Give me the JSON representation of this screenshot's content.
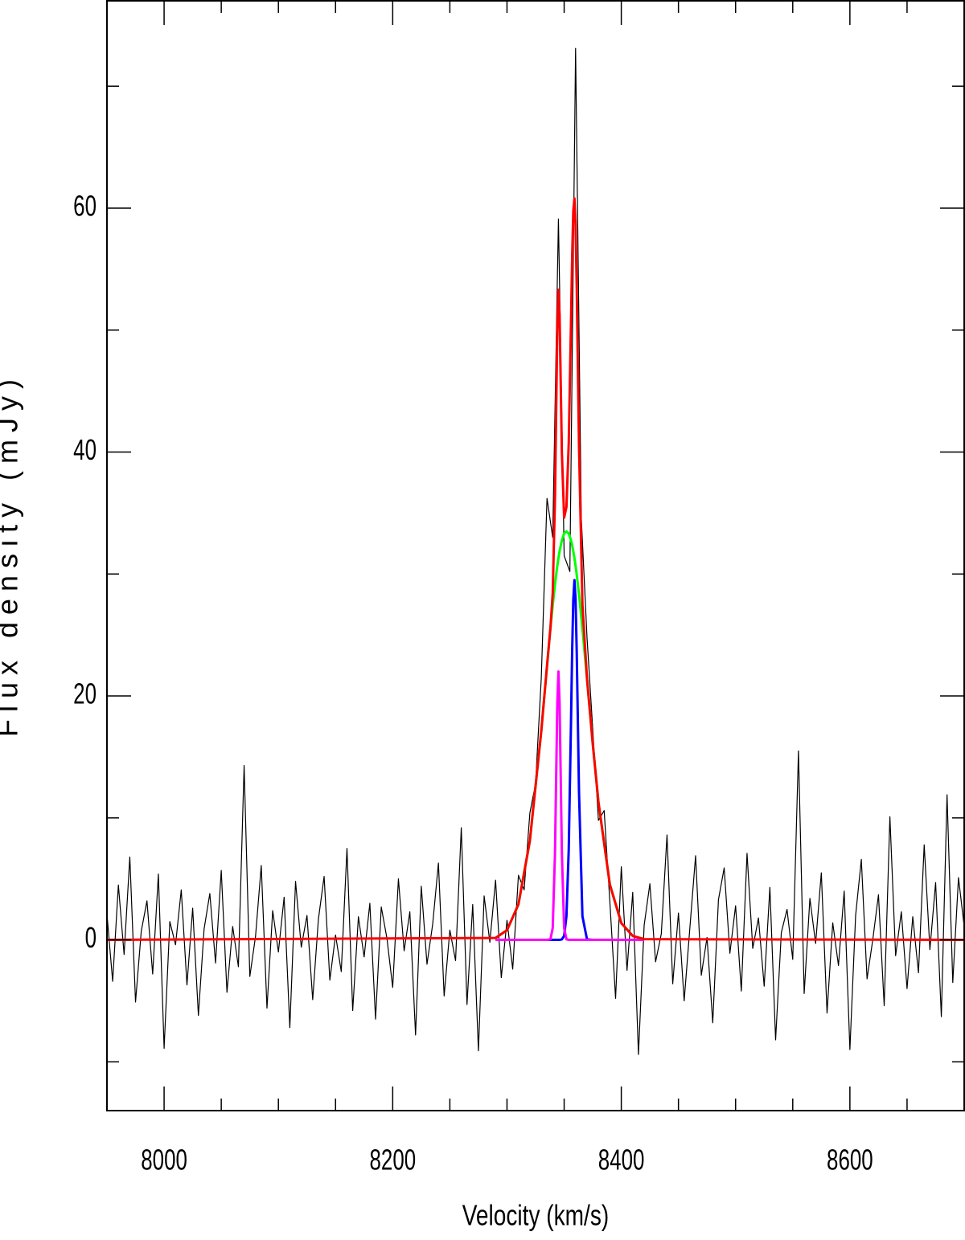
{
  "chart_data": {
    "type": "line",
    "xlabel": "Velocity (km/s)",
    "ylabel": "Flux density (mJy)",
    "xlim": [
      7950,
      8700
    ],
    "ylim": [
      -14,
      77
    ],
    "xticks": [
      8000,
      8200,
      8400,
      8600
    ],
    "yticks": [
      0,
      20,
      40,
      60
    ],
    "xminor_ticks": [
      8050,
      8100,
      8150,
      8250,
      8300,
      8350,
      8450,
      8500,
      8550,
      8650
    ],
    "yminor_ticks": [
      -10,
      10,
      30,
      50,
      70
    ],
    "grid": false,
    "x": [
      7950,
      7955,
      7960,
      7965,
      7970,
      7975,
      7980,
      7985,
      7990,
      7995,
      8000,
      8005,
      8010,
      8015,
      8020,
      8025,
      8030,
      8035,
      8040,
      8045,
      8050,
      8055,
      8060,
      8065,
      8070,
      8075,
      8080,
      8085,
      8090,
      8095,
      8100,
      8105,
      8110,
      8115,
      8120,
      8125,
      8130,
      8135,
      8140,
      8145,
      8150,
      8155,
      8160,
      8165,
      8170,
      8175,
      8180,
      8185,
      8190,
      8195,
      8200,
      8205,
      8210,
      8215,
      8220,
      8225,
      8230,
      8235,
      8240,
      8245,
      8250,
      8255,
      8260,
      8265,
      8270,
      8275,
      8280,
      8285,
      8290,
      8295,
      8300,
      8305,
      8310,
      8315,
      8320,
      8325,
      8330,
      8335,
      8340,
      8345,
      8350,
      8355,
      8360,
      8365,
      8370,
      8375,
      8380,
      8385,
      8390,
      8395,
      8400,
      8405,
      8410,
      8415,
      8420,
      8425,
      8430,
      8435,
      8440,
      8445,
      8450,
      8455,
      8460,
      8465,
      8470,
      8475,
      8480,
      8485,
      8490,
      8495,
      8500,
      8505,
      8510,
      8515,
      8520,
      8525,
      8530,
      8535,
      8540,
      8545,
      8550,
      8555,
      8560,
      8565,
      8570,
      8575,
      8580,
      8585,
      8590,
      8595,
      8600,
      8605,
      8610,
      8615,
      8620,
      8625,
      8630,
      8635,
      8640,
      8645,
      8650,
      8655,
      8660,
      8665,
      8670,
      8675,
      8680,
      8685,
      8690,
      8695,
      8700
    ],
    "series": [
      {
        "color": "#000000",
        "values": [
          2.1,
          -3.4,
          4.5,
          -1.2,
          6.8,
          -5.1,
          0.7,
          3.2,
          -2.8,
          5.4,
          -8.9,
          1.5,
          -0.4,
          4.1,
          -3.7,
          2.6,
          -6.2,
          0.9,
          3.8,
          -1.9,
          5.7,
          -4.3,
          1.1,
          -2.2,
          14.3,
          -3.0,
          0.3,
          6.1,
          -5.6,
          2.4,
          -1.0,
          3.5,
          -7.2,
          4.8,
          -0.6,
          2.0,
          -4.9,
          1.7,
          5.2,
          -3.3,
          0.4,
          -2.6,
          7.5,
          -5.8,
          1.9,
          -1.4,
          3.0,
          -6.5,
          2.7,
          0.1,
          -3.9,
          5.0,
          -0.9,
          2.3,
          -7.8,
          4.4,
          -2.0,
          1.3,
          6.3,
          -4.6,
          0.8,
          -1.7,
          9.2,
          -5.3,
          2.9,
          -9.1,
          3.6,
          -0.2,
          4.9,
          -3.1,
          1.6,
          -2.4,
          5.3,
          4.1,
          10.4,
          12.8,
          21.5,
          36.2,
          33.0,
          59.1,
          31.5,
          30.2,
          73.1,
          34.6,
          24.8,
          17.3,
          9.8,
          10.6,
          3.1,
          -4.8,
          6.0,
          -2.5,
          3.9,
          -9.4,
          1.2,
          4.6,
          -1.8,
          0.5,
          8.6,
          -3.6,
          2.2,
          -5.0,
          1.0,
          6.9,
          -2.9,
          0.2,
          -6.8,
          3.3,
          5.9,
          -1.1,
          2.8,
          -4.2,
          7.1,
          -0.7,
          1.8,
          -3.8,
          4.3,
          -8.2,
          0.6,
          2.5,
          -1.6,
          15.5,
          -4.4,
          3.4,
          -0.3,
          5.5,
          -6.0,
          1.4,
          -2.1,
          4.0,
          -9.0,
          2.0,
          6.6,
          -3.2,
          0.0,
          3.7,
          -5.4,
          10.1,
          -1.3,
          2.3,
          -4.0,
          1.9,
          -2.7,
          7.8,
          -0.8,
          4.7,
          -6.3,
          11.9,
          -3.5,
          5.1,
          1.1
        ]
      },
      {
        "color": "#0000ff",
        "x": [
          8290,
          8300,
          8310,
          8320,
          8330,
          8335,
          8338,
          8340,
          8342,
          8344,
          8345,
          8346,
          8348,
          8350,
          8352,
          8354,
          8356,
          8357,
          8358,
          8359,
          8360,
          8361,
          8363,
          8366,
          8370,
          8375,
          8380,
          8390,
          8400,
          8410,
          8420
        ],
        "values": [
          0,
          0,
          0,
          0,
          0,
          0,
          0,
          0,
          0,
          0,
          0,
          0,
          0.04,
          0.33,
          1.94,
          7.36,
          17.89,
          23.62,
          27.91,
          29.5,
          27.91,
          23.62,
          12.13,
          1.94,
          0.04,
          0,
          0,
          0,
          0,
          0,
          0
        ]
      },
      {
        "color": "#ff00ff",
        "x": [
          8290,
          8300,
          8310,
          8320,
          8330,
          8335,
          8338,
          8340,
          8342,
          8344,
          8345,
          8346,
          8348,
          8350,
          8352,
          8354,
          8356,
          8357,
          8358,
          8359,
          8360,
          8361,
          8363,
          8366,
          8370,
          8375,
          8380,
          8390,
          8400,
          8410,
          8420
        ],
        "values": [
          0,
          0,
          0,
          0,
          0,
          0,
          0.05,
          0.97,
          7.14,
          19.41,
          22,
          19.41,
          7.14,
          0.97,
          0.05,
          0,
          0,
          0,
          0,
          0,
          0,
          0,
          0,
          0,
          0,
          0,
          0,
          0,
          0,
          0,
          0
        ]
      },
      {
        "color": "#00ff00",
        "x": [
          8290,
          8300,
          8310,
          8320,
          8330,
          8335,
          8338,
          8340,
          8342,
          8344,
          8345,
          8346,
          8348,
          8350,
          8352,
          8354,
          8356,
          8357,
          8358,
          8359,
          8360,
          8361,
          8363,
          8366,
          8370,
          8375,
          8380,
          8390,
          8400,
          8410,
          8420
        ],
        "values": [
          0.16,
          0.79,
          2.91,
          8.12,
          17.14,
          22.45,
          25.54,
          27.45,
          29.17,
          30.66,
          31.3,
          31.87,
          32.76,
          33.32,
          33.5,
          33.32,
          32.76,
          32.36,
          31.87,
          31.3,
          30.66,
          29.95,
          28.33,
          25.54,
          21.39,
          16.11,
          11.31,
          4.53,
          1.38,
          0.32,
          0.06
        ]
      },
      {
        "color": "#ff0000",
        "x": [
          7950,
          8290,
          8300,
          8310,
          8320,
          8330,
          8335,
          8338,
          8340,
          8342,
          8344,
          8345,
          8346,
          8348,
          8350,
          8352,
          8354,
          8356,
          8357,
          8358,
          8359,
          8360,
          8361,
          8363,
          8366,
          8370,
          8375,
          8380,
          8390,
          8400,
          8410,
          8420,
          8700
        ],
        "values": [
          0,
          0.16,
          0.79,
          2.91,
          8.12,
          17.14,
          22.45,
          25.59,
          28.42,
          36.31,
          50.07,
          53.3,
          51.28,
          39.94,
          34.62,
          35.49,
          40.68,
          50.65,
          55.98,
          59.78,
          60.8,
          58.57,
          53.57,
          40.46,
          27.48,
          21.43,
          16.11,
          11.31,
          4.53,
          1.38,
          0.32,
          0.06,
          0
        ]
      }
    ]
  }
}
